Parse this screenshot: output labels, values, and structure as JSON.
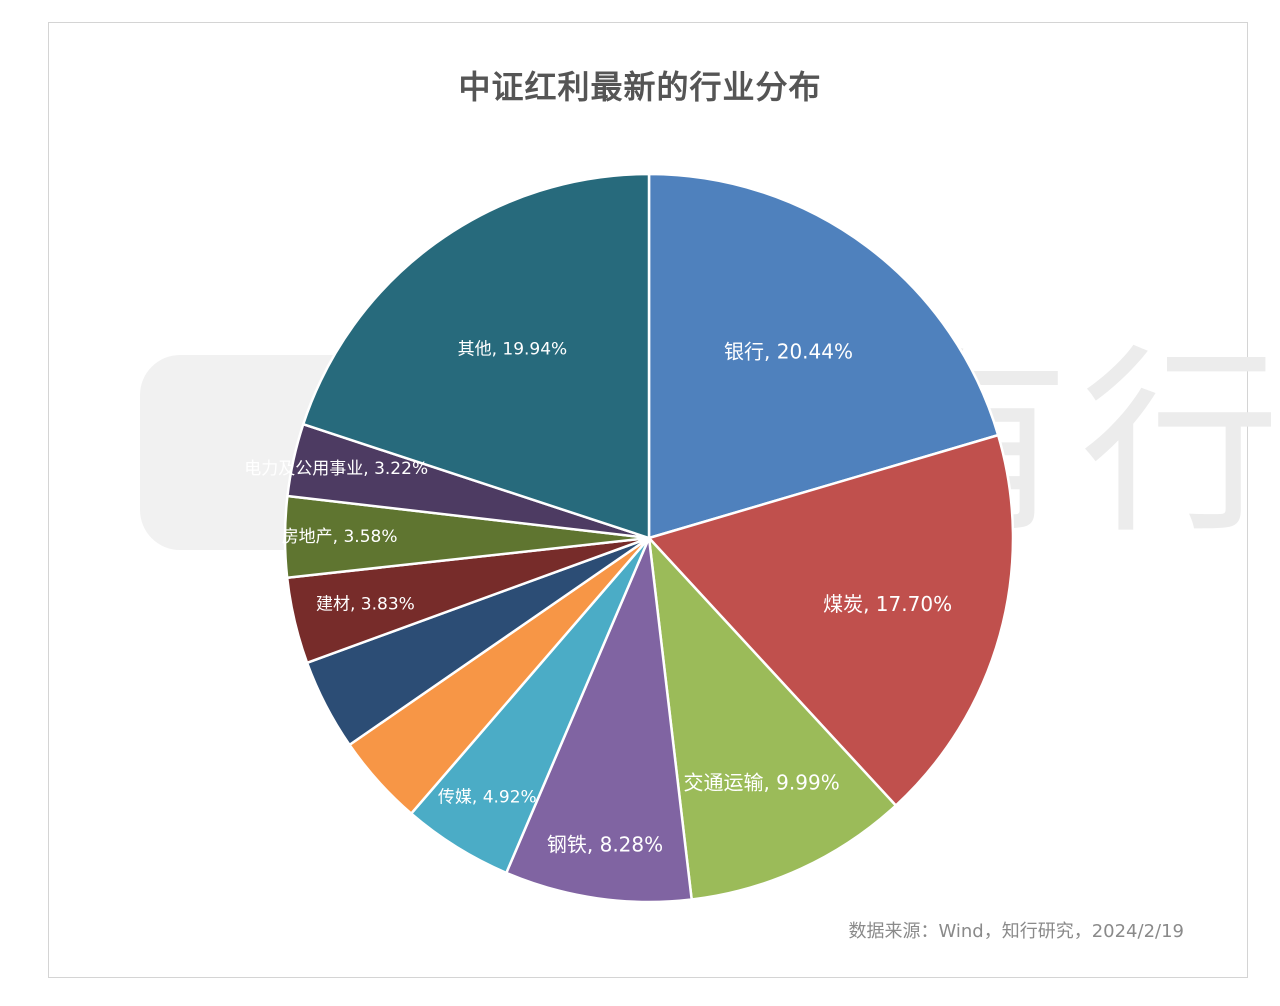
{
  "title": "中证红利最新的行业分布",
  "source": "数据来源：Wind，知行研究，2024/2/19",
  "watermark": "自知有行",
  "chart_data": {
    "type": "pie",
    "title": "中证红利最新的行业分布",
    "slices": [
      {
        "label": "银行",
        "value": 20.44,
        "display": "银行, 20.44%",
        "color": "#4f81bd"
      },
      {
        "label": "煤炭",
        "value": 17.7,
        "display": "煤炭, 17.70%",
        "color": "#c0504d"
      },
      {
        "label": "交通运输",
        "value": 9.99,
        "display": "交通运输, 9.99%",
        "color": "#9bbb59"
      },
      {
        "label": "钢铁",
        "value": 8.28,
        "display": "钢铁, 8.28%",
        "color": "#8064a2"
      },
      {
        "label": "传媒",
        "value": 4.92,
        "display": "传媒, 4.92%",
        "color": "#4bacc6"
      },
      {
        "label": "",
        "value": 4.05,
        "display": "",
        "color": "#f79646"
      },
      {
        "label": "",
        "value": 4.05,
        "display": "",
        "color": "#2c4d75"
      },
      {
        "label": "建材",
        "value": 3.83,
        "display": "建材, 3.83%",
        "color": "#772c2a"
      },
      {
        "label": "房地产",
        "value": 3.58,
        "display": "房地产, 3.58%",
        "color": "#5f7530"
      },
      {
        "label": "电力及公用事业",
        "value": 3.22,
        "display": "电力及公用事业, 3.22%",
        "color": "#4d3b62"
      },
      {
        "label": "其他",
        "value": 19.94,
        "display": "其他, 19.94%",
        "color": "#276a7c"
      }
    ]
  }
}
